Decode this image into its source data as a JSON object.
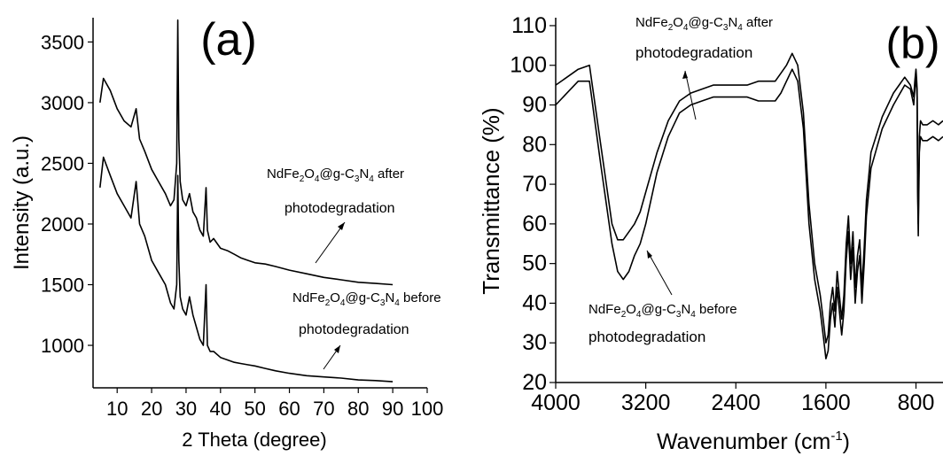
{
  "chart_data": [
    {
      "panel_label": "(a)",
      "type": "line",
      "xlabel": "2 Theta (degree)",
      "ylabel": "Intensity (a.u.)",
      "xlim": [
        3,
        100
      ],
      "ylim": [
        650,
        3700
      ],
      "x_ticks": [
        10,
        20,
        30,
        40,
        50,
        60,
        70,
        80,
        90,
        100
      ],
      "y_ticks": [
        1000,
        1500,
        2000,
        2500,
        3000,
        3500
      ],
      "series": [
        {
          "x": [
            5,
            6,
            8,
            10,
            12,
            14,
            15.5,
            16.5,
            18,
            20,
            22,
            24,
            25.5,
            26.5,
            27.3,
            27.6,
            27.9,
            28.3,
            29,
            30,
            31,
            32,
            33,
            34,
            35,
            35.8,
            36.2,
            37,
            38,
            40,
            42,
            44,
            46,
            48,
            50,
            53,
            56,
            60,
            65,
            70,
            75,
            80,
            85,
            90
          ],
          "y": [
            3000,
            3200,
            3100,
            2950,
            2850,
            2800,
            2950,
            2700,
            2600,
            2450,
            2350,
            2250,
            2150,
            2200,
            2500,
            3680,
            2700,
            2350,
            2200,
            2150,
            2250,
            2100,
            2050,
            1950,
            1900,
            2300,
            1950,
            1850,
            1880,
            1800,
            1780,
            1750,
            1720,
            1700,
            1680,
            1670,
            1650,
            1620,
            1590,
            1560,
            1540,
            1520,
            1510,
            1500
          ]
        },
        {
          "x": [
            5,
            6,
            8,
            10,
            12,
            14,
            15.5,
            16.5,
            18,
            20,
            22,
            24,
            25.5,
            26.5,
            27.3,
            27.6,
            27.9,
            28.3,
            29,
            30,
            31,
            32,
            33,
            34,
            35,
            35.8,
            36.2,
            37,
            38,
            40,
            42,
            44,
            46,
            48,
            50,
            53,
            56,
            60,
            65,
            70,
            75,
            80,
            85,
            90
          ],
          "y": [
            2300,
            2550,
            2400,
            2250,
            2150,
            2050,
            2350,
            2000,
            1900,
            1700,
            1600,
            1500,
            1350,
            1300,
            1500,
            2400,
            1700,
            1400,
            1300,
            1250,
            1400,
            1250,
            1150,
            1050,
            1000,
            1500,
            1000,
            950,
            950,
            900,
            880,
            860,
            850,
            840,
            830,
            810,
            790,
            770,
            750,
            740,
            730,
            715,
            710,
            700
          ]
        }
      ],
      "annotations": [
        {
          "formula": {
            "a": "NdFe",
            "b": "2",
            "c": "O",
            "d": "4",
            "e": "@g-C",
            "f": "3",
            "g": "N",
            "h": "4",
            "i": " after"
          },
          "line2": "photodegradation"
        },
        {
          "formula": {
            "a": "NdFe",
            "b": "2",
            "c": "O",
            "d": "4",
            "e": "@g-C",
            "f": "3",
            "g": "N",
            "h": "4",
            "i": " before"
          },
          "line2": "photodegradation"
        }
      ]
    },
    {
      "panel_label": "(b)",
      "type": "line",
      "xlabel": {
        "main": "Wavenumber (cm",
        "sup": "-1",
        "close": ")"
      },
      "ylabel": "Transmittance (%)",
      "xlim": [
        4000,
        560
      ],
      "ylim": [
        20,
        112
      ],
      "x_ticks": [
        4000,
        3200,
        2400,
        1600,
        800
      ],
      "y_ticks": [
        20,
        30,
        40,
        50,
        60,
        70,
        80,
        90,
        100,
        110
      ],
      "series": [
        {
          "x": [
            4000,
            3900,
            3800,
            3700,
            3600,
            3500,
            3450,
            3400,
            3350,
            3300,
            3250,
            3200,
            3100,
            3000,
            2900,
            2800,
            2700,
            2600,
            2500,
            2400,
            2300,
            2200,
            2100,
            2050,
            2000,
            1950,
            1900,
            1850,
            1800,
            1750,
            1700,
            1650,
            1620,
            1600,
            1580,
            1560,
            1540,
            1520,
            1500,
            1480,
            1460,
            1440,
            1420,
            1400,
            1380,
            1360,
            1340,
            1320,
            1300,
            1280,
            1260,
            1240,
            1220,
            1200,
            1100,
            1000,
            900,
            850,
            820,
            810,
            800,
            795,
            790,
            785,
            780,
            770,
            760,
            740,
            700,
            650,
            600,
            560
          ],
          "y": [
            95,
            97,
            99,
            100,
            80,
            60,
            56,
            56,
            58,
            60,
            63,
            68,
            78,
            86,
            91,
            93,
            94,
            95,
            95,
            95,
            95,
            96,
            96,
            96,
            98,
            100,
            103,
            100,
            88,
            65,
            50,
            42,
            35,
            30,
            32,
            40,
            44,
            38,
            48,
            42,
            36,
            42,
            55,
            62,
            50,
            58,
            44,
            52,
            56,
            44,
            54,
            66,
            72,
            78,
            87,
            93,
            97,
            95,
            92,
            96,
            99,
            97,
            94,
            70,
            60,
            82,
            86,
            85,
            85,
            86,
            85,
            86
          ]
        },
        {
          "x": [
            4000,
            3900,
            3800,
            3700,
            3600,
            3500,
            3450,
            3400,
            3350,
            3300,
            3250,
            3200,
            3100,
            3000,
            2900,
            2800,
            2700,
            2600,
            2500,
            2400,
            2300,
            2200,
            2100,
            2050,
            2000,
            1950,
            1900,
            1850,
            1800,
            1750,
            1700,
            1650,
            1620,
            1600,
            1580,
            1560,
            1540,
            1520,
            1500,
            1480,
            1460,
            1440,
            1420,
            1400,
            1380,
            1360,
            1340,
            1320,
            1300,
            1280,
            1260,
            1240,
            1220,
            1200,
            1100,
            1000,
            900,
            850,
            820,
            810,
            800,
            795,
            790,
            785,
            780,
            770,
            760,
            740,
            700,
            650,
            600,
            560
          ],
          "y": [
            90,
            93,
            96,
            96,
            75,
            55,
            48,
            46,
            48,
            52,
            55,
            60,
            73,
            82,
            88,
            90,
            91,
            92,
            92,
            92,
            92,
            91,
            91,
            91,
            93,
            96,
            99,
            96,
            84,
            60,
            46,
            38,
            31,
            26,
            28,
            36,
            40,
            34,
            44,
            38,
            32,
            38,
            51,
            58,
            46,
            54,
            40,
            48,
            52,
            40,
            50,
            62,
            68,
            74,
            84,
            90,
            95,
            94,
            90,
            94,
            97,
            95,
            92,
            68,
            57,
            78,
            82,
            81,
            81,
            82,
            81,
            82
          ]
        }
      ],
      "annotations": [
        {
          "formula": {
            "a": "NdFe",
            "b": "2",
            "c": "O",
            "d": "4",
            "e": "@g-C",
            "f": "3",
            "g": "N",
            "h": "4",
            "i": " after"
          },
          "line2": "photodegradation"
        },
        {
          "formula": {
            "a": "NdFe",
            "b": "2",
            "c": "O",
            "d": "4",
            "e": "@g-C",
            "f": "3",
            "g": "N",
            "h": "4",
            "i": " before"
          },
          "line2": "photodegradation"
        }
      ]
    }
  ]
}
